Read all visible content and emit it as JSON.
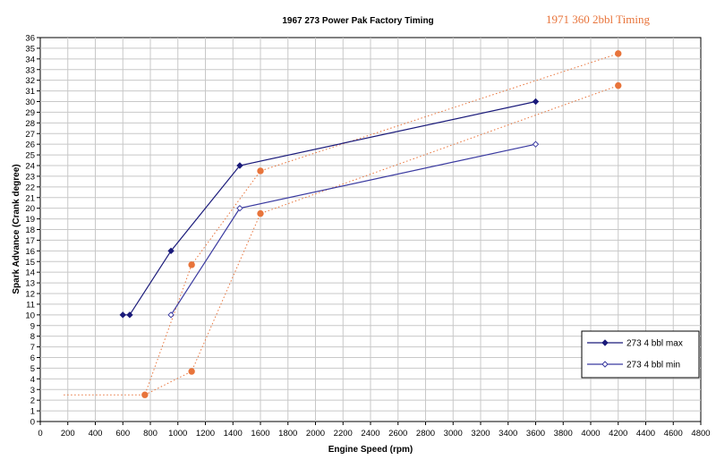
{
  "chart_data": {
    "type": "line",
    "title": "1967 273 Power Pak Factory Timing",
    "overlay_title": "1971 360 2bbl Timing",
    "xlabel": "Engine Speed (rpm)",
    "ylabel": "Spark Advance (Crank degree)",
    "xlim": [
      0,
      4800
    ],
    "ylim": [
      0,
      36
    ],
    "xticks": [
      0,
      200,
      400,
      600,
      800,
      1000,
      1200,
      1400,
      1600,
      1800,
      2000,
      2200,
      2400,
      2600,
      2800,
      3000,
      3200,
      3400,
      3600,
      3800,
      4000,
      4200,
      4400,
      4600,
      4800
    ],
    "yticks": [
      0,
      1,
      2,
      3,
      4,
      5,
      6,
      7,
      8,
      9,
      10,
      11,
      12,
      13,
      14,
      15,
      16,
      17,
      18,
      19,
      20,
      21,
      22,
      23,
      24,
      25,
      26,
      27,
      28,
      29,
      30,
      31,
      32,
      33,
      34,
      35,
      36
    ],
    "grid": true,
    "legend_position": "bottom-right",
    "series": [
      {
        "name": "273 4 bbl max",
        "color": "#1a1a7a",
        "marker": "filled-diamond",
        "x": [
          600,
          650,
          950,
          1450,
          3600
        ],
        "y": [
          10,
          10,
          16,
          24,
          30
        ]
      },
      {
        "name": "273 4 bbl min",
        "color": "#3a3aa0",
        "marker": "hollow-diamond",
        "x": [
          950,
          1450,
          3600
        ],
        "y": [
          10,
          20,
          26
        ]
      }
    ],
    "overlay_series": [
      {
        "color": "#e8743b",
        "style": "dotted",
        "x": [
          170,
          760,
          1100,
          1600,
          4200
        ],
        "y": [
          2.5,
          2.5,
          14.7,
          23.5,
          34.5
        ],
        "markers": [
          false,
          true,
          true,
          true,
          true
        ]
      },
      {
        "color": "#e8743b",
        "style": "dotted",
        "x": [
          760,
          1100,
          1600,
          4200
        ],
        "y": [
          2.5,
          4.7,
          19.5,
          31.5
        ],
        "markers": [
          false,
          true,
          true,
          true
        ]
      }
    ]
  }
}
